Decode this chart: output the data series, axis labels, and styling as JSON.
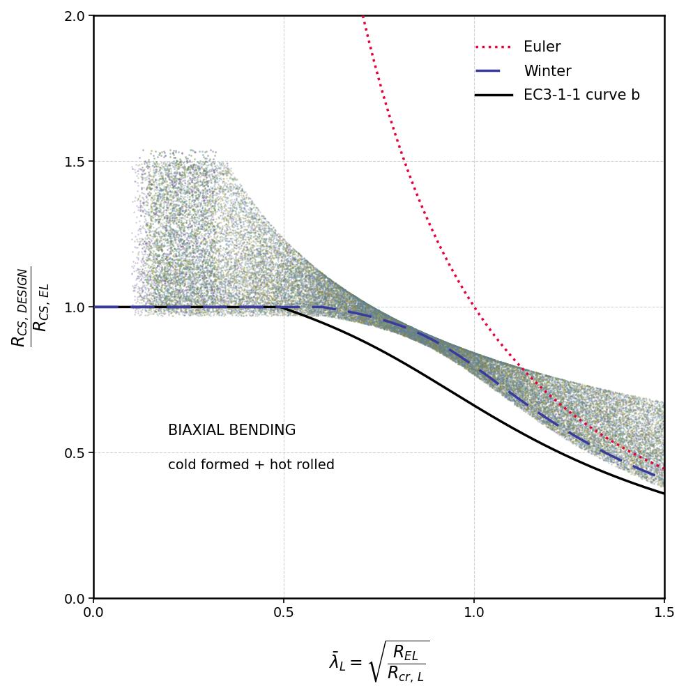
{
  "xlim": [
    0.0,
    1.5
  ],
  "ylim": [
    0.0,
    2.0
  ],
  "xticks": [
    0.0,
    0.5,
    1.0,
    1.5
  ],
  "yticks": [
    0.0,
    0.5,
    1.0,
    1.5,
    2.0
  ],
  "euler_color": "#e8003d",
  "winter_color": "#3a3a9e",
  "ec3_color": "#000000",
  "scatter_colors": [
    "#7b5ea7",
    "#6b8e3a",
    "#5a8e8e",
    "#9a8a2a",
    "#5a7fa6"
  ],
  "annotation_line1": "BIAXIAL BENDING",
  "annotation_line2": "cold formed + hot rolled",
  "legend_labels": [
    "Euler",
    "Winter",
    "EC3-1-1 curve b"
  ],
  "alpha_winter": 0.13,
  "lambda0_winter": 0.6,
  "alpha_ec3": 0.34,
  "lambda0_ec3": 0.49,
  "scatter_seed": 42,
  "grid_color": "#cccccc",
  "grid_minor_color": "#e0e0e0"
}
